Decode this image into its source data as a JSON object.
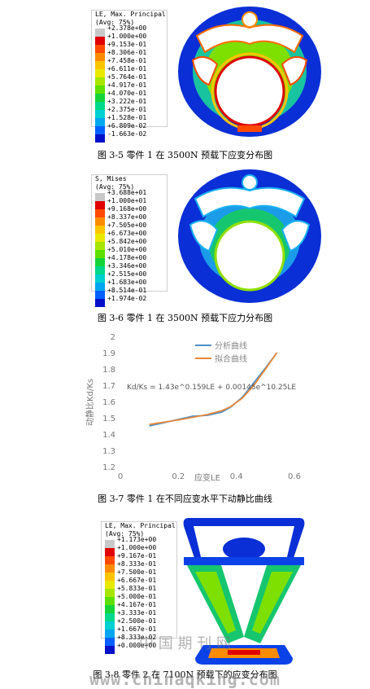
{
  "figures": [
    {
      "legend_title": [
        "LE, Max. Principal",
        "(Avg: 75%)"
      ],
      "legend_values": [
        "+2.378e+00",
        "+1.000e+00",
        "+9.153e-01",
        "+8.306e-01",
        "+7.458e-01",
        "+6.611e-01",
        "+5.764e-01",
        "+4.917e-01",
        "+4.070e-01",
        "+3.222e-01",
        "+2.375e-01",
        "+1.528e-01",
        "+6.809e-02",
        "-1.663e-02"
      ],
      "caption": "图 3-5 零件 1 在 3500N 预载下应变分布图"
    },
    {
      "legend_title": [
        "S, Mises",
        "(Avg: 75%)"
      ],
      "legend_values": [
        "+3.688e+01",
        "+1.000e+01",
        "+9.168e+00",
        "+8.337e+00",
        "+7.505e+00",
        "+6.673e+00",
        "+5.842e+00",
        "+5.010e+00",
        "+4.178e+00",
        "+3.346e+00",
        "+2.515e+00",
        "+1.683e+00",
        "+8.514e-01",
        "+1.974e-02"
      ],
      "caption": "图 3-6 零件 1 在 3500N 预载下应力分布图"
    },
    {
      "caption": "图 3-7 零件 1 在不同应变水平下动静比曲线"
    },
    {
      "legend_title": [
        "LE, Max. Principal",
        "(Avg: 75%)"
      ],
      "legend_values": [
        "+1.173e+00",
        "+1.000e+00",
        "+9.167e-01",
        "+8.333e-01",
        "+7.500e-01",
        "+6.667e-01",
        "+5.833e-01",
        "+5.000e-01",
        "+4.167e-01",
        "+3.333e-01",
        "+2.500e-01",
        "+1.667e-01",
        "+8.333e-02",
        "+0.000e+00"
      ],
      "caption": "图 3-8 零件 2 在 7100N 预载下的应变分布图"
    }
  ],
  "legend_colors": [
    "#c8c8c8",
    "#e00000",
    "#ff4a00",
    "#ff8c00",
    "#ffc400",
    "#e8e800",
    "#a6e600",
    "#5de000",
    "#14d43a",
    "#00d88a",
    "#00d0d0",
    "#00a6f0",
    "#0060ff",
    "#0010c8"
  ],
  "chart_data": {
    "type": "line",
    "xlabel": "应变LE",
    "ylabel": "动静比Kd/Ks",
    "xlim": [
      0,
      0.6
    ],
    "ylim": [
      1.2,
      2.0
    ],
    "x_ticks": [
      0,
      0.2,
      0.4,
      0.6
    ],
    "x_tick_labels": [
      "0",
      "0.2",
      "0.4",
      "0.6"
    ],
    "y_ticks": [
      1.2,
      1.3,
      1.4,
      1.5,
      1.6,
      1.7,
      1.8,
      1.9,
      2.0
    ],
    "y_tick_labels": [
      "1.2",
      "1.3",
      "1.4",
      "1.5",
      "1.6",
      "1.7",
      "1.8",
      "1.9",
      "2"
    ],
    "grid": false,
    "legend_position": "top-right",
    "annotation": "Kd/Ks = 1.43e^0.159LE + 0.00145e^10.25LE",
    "series": [
      {
        "name": "分析曲线",
        "color": "#4f8fc9",
        "x": [
          0.1,
          0.15,
          0.2,
          0.25,
          0.3,
          0.35,
          0.38,
          0.42,
          0.46,
          0.5,
          0.54
        ],
        "y": [
          1.455,
          1.475,
          1.495,
          1.515,
          1.52,
          1.54,
          1.57,
          1.63,
          1.72,
          1.81,
          1.905
        ]
      },
      {
        "name": "拟合曲线",
        "color": "#e8883a",
        "x": [
          0.1,
          0.15,
          0.2,
          0.25,
          0.3,
          0.35,
          0.38,
          0.42,
          0.46,
          0.5,
          0.54
        ],
        "y": [
          1.464,
          1.478,
          1.492,
          1.508,
          1.525,
          1.549,
          1.573,
          1.625,
          1.704,
          1.803,
          1.905
        ]
      }
    ]
  },
  "watermark": {
    "cn": "中 国 期 刊 网",
    "url": "www.chinaqking.com"
  }
}
